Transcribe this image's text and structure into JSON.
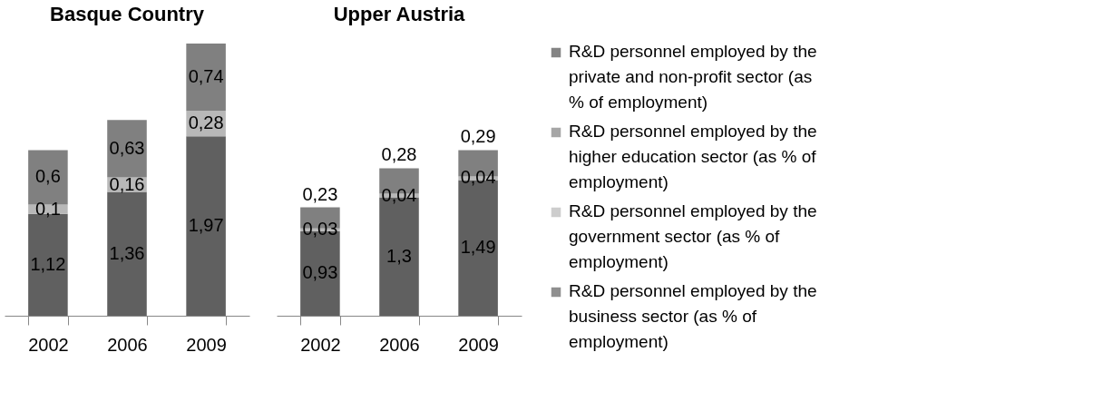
{
  "chart_data": [
    {
      "type": "bar",
      "title": "Basque Country",
      "stacked": true,
      "categories": [
        "2002",
        "2006",
        "2009"
      ],
      "series": [
        {
          "color": "#606060",
          "values": [
            1.12,
            1.36,
            1.97
          ],
          "value_labels": [
            "1,12",
            "1,36",
            "1,97"
          ]
        },
        {
          "color": "#b8b8b8",
          "values": [
            0.1,
            0.16,
            0.28
          ],
          "value_labels": [
            "0,1",
            "0,16",
            "0,28"
          ]
        },
        {
          "color": "#808080",
          "values": [
            0.6,
            0.63,
            0.74
          ],
          "value_labels": [
            "0,6",
            "0,63",
            "0,74"
          ]
        }
      ]
    },
    {
      "type": "bar",
      "title": "Upper Austria",
      "stacked": true,
      "legend": "right",
      "categories": [
        "2002",
        "2006",
        "2009"
      ],
      "series": [
        {
          "name": "R&D personnel employed by the business sector (as % of employment)",
          "color": "#606060",
          "values": [
            0.93,
            1.3,
            1.49
          ],
          "value_labels": [
            "0,93",
            "1,3",
            "1,49"
          ]
        },
        {
          "name": "R&D personnel employed by the government sector (as % of employment)",
          "color": "#b8b8b8",
          "values": [
            0.03,
            0.04,
            0.04
          ],
          "value_labels": [
            "0,03",
            "0,04",
            "0,04"
          ]
        },
        {
          "name": "R&D personnel employed by the higher education sector (as % of employment)",
          "color": "#808080",
          "values": [
            0.23,
            0.28,
            0.29
          ],
          "value_labels": [
            "0,23",
            "0,28",
            "0,29"
          ]
        },
        {
          "name": "R&D personnel employed by the private and non-profit sector (as % of employment)",
          "color": "#505050",
          "values": [
            null,
            null,
            null
          ]
        }
      ]
    }
  ]
}
